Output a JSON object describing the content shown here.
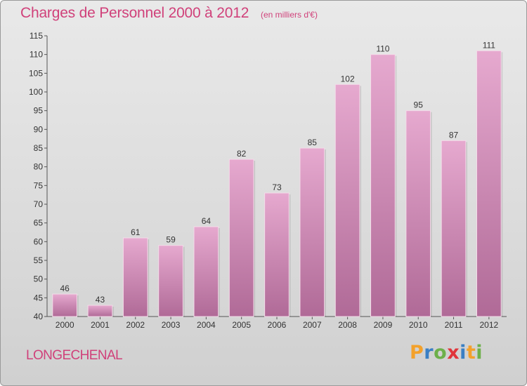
{
  "header": {
    "title": "Charges de Personnel 2000 à 2012",
    "unit": "(en milliers d'€)"
  },
  "footer": {
    "commune": "LONGECHENAL",
    "brand": [
      "P",
      "r",
      "o",
      "x",
      "i",
      "t",
      "i"
    ]
  },
  "colors": {
    "title": "#d0417a",
    "bar_top": "#e6a9cf",
    "bar_bottom": "#b06a97",
    "brand": [
      "#f3a12b",
      "#3a7fc4",
      "#6db04a",
      "#e0353a",
      "#3a7fc4",
      "#f3a12b",
      "#6db04a"
    ]
  },
  "chart_data": {
    "type": "bar",
    "title": "Charges de Personnel 2000 à 2012",
    "subtitle": "(en milliers d'€)",
    "categories": [
      "2000",
      "2001",
      "2002",
      "2003",
      "2004",
      "2005",
      "2006",
      "2007",
      "2008",
      "2009",
      "2010",
      "2011",
      "2012"
    ],
    "values": [
      46,
      43,
      61,
      59,
      64,
      82,
      73,
      85,
      102,
      110,
      95,
      87,
      111
    ],
    "ylim": [
      40,
      115
    ],
    "yticks": [
      40,
      45,
      50,
      55,
      60,
      65,
      70,
      75,
      80,
      85,
      90,
      95,
      100,
      105,
      110,
      115
    ],
    "grid": false,
    "legend": "none"
  }
}
